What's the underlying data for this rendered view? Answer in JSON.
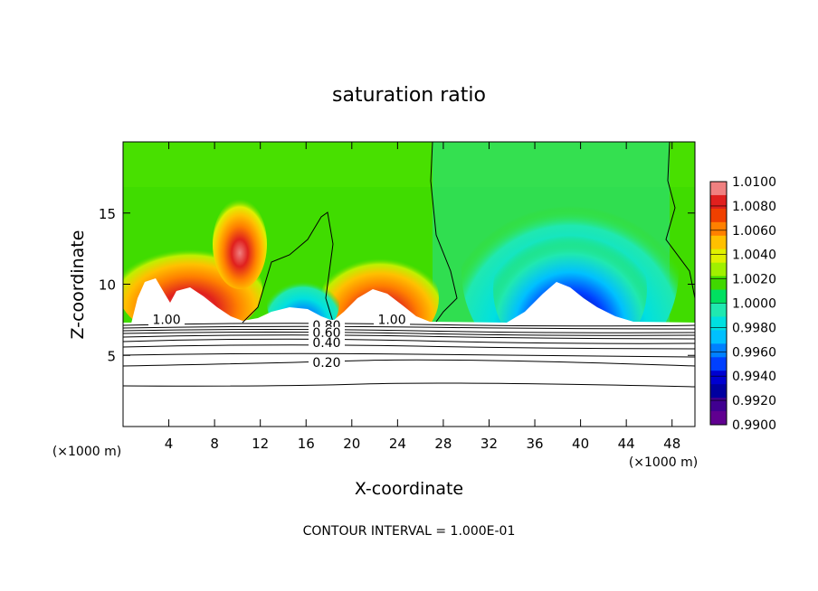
{
  "chart_data": {
    "type": "heatmap",
    "title": "saturation ratio",
    "xlabel": "X-coordinate",
    "ylabel": "Z-coordinate",
    "x_unit_left": "(×1000 m)",
    "x_unit_right": "(×1000 m)",
    "footer": "CONTOUR INTERVAL = 1.000E-01",
    "xlim": [
      0,
      50
    ],
    "ylim": [
      0,
      20
    ],
    "x_ticks": [
      "4",
      "8",
      "12",
      "16",
      "20",
      "24",
      "28",
      "32",
      "36",
      "40",
      "44",
      "48"
    ],
    "x_tick_values": [
      4,
      8,
      12,
      16,
      20,
      24,
      28,
      32,
      36,
      40,
      44,
      48
    ],
    "y_ticks": [
      "5",
      "10",
      "15"
    ],
    "y_tick_values": [
      5,
      10,
      15
    ],
    "colorbar": {
      "labels": [
        "1.0100",
        "1.0080",
        "1.0060",
        "1.0040",
        "1.0020",
        "1.0000",
        "0.9980",
        "0.9960",
        "0.9940",
        "0.9920",
        "0.9900"
      ],
      "values": [
        1.01,
        1.008,
        1.006,
        1.004,
        1.002,
        1.0,
        0.998,
        0.996,
        0.994,
        0.992,
        0.99
      ],
      "colors": [
        "#f08080",
        "#e0201e",
        "#f04000",
        "#ff8000",
        "#ffc000",
        "#e0f000",
        "#a0f000",
        "#40d800",
        "#00e060",
        "#20e8b0",
        "#00e0e0",
        "#00c0ff",
        "#0080ff",
        "#0040ff",
        "#0000d0",
        "#0000a0",
        "#400090",
        "#600090"
      ]
    },
    "contour_labels": [
      {
        "text": "1.00",
        "x": 3.8,
        "y": 7.2
      },
      {
        "text": "1.00",
        "x": 23.5,
        "y": 7.2
      },
      {
        "text": "0.80",
        "x": 17.8,
        "y": 6.8
      },
      {
        "text": "0.60",
        "x": 17.8,
        "y": 6.3
      },
      {
        "text": "0.40",
        "x": 17.8,
        "y": 5.6
      },
      {
        "text": "0.20",
        "x": 17.8,
        "y": 4.2
      }
    ]
  }
}
